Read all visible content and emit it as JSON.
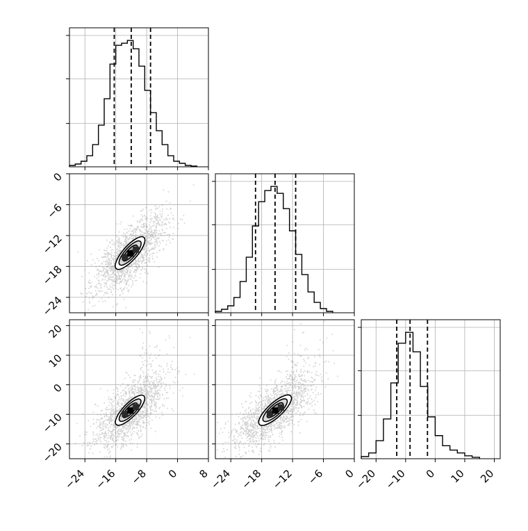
{
  "chart_data": {
    "type": "corner",
    "grid": true,
    "variables": [
      {
        "xlim": [
          -28,
          8
        ],
        "x_ticks": [
          -24,
          -16,
          -8,
          0,
          8
        ],
        "quantiles": [
          -16.4,
          -12.0,
          -7.0
        ],
        "histogram": {
          "bin_edges": [
            -28,
            -26.5,
            -25,
            -23.5,
            -22,
            -20.5,
            -19,
            -17.5,
            -16,
            -14.5,
            -13,
            -11.5,
            -10,
            -8.5,
            -7,
            -5.5,
            -4,
            -2.5,
            -1,
            0.5,
            2,
            3.5,
            5
          ],
          "counts": [
            2,
            4,
            8,
            16,
            32,
            60,
            98,
            148,
            175,
            178,
            182,
            170,
            145,
            110,
            78,
            52,
            32,
            16,
            8,
            5,
            2,
            1
          ]
        }
      },
      {
        "xlim": [
          -27,
          0
        ],
        "x_ticks": [
          -24,
          -18,
          -12,
          -6,
          0
        ],
        "y_ticks": [
          0,
          -6,
          -12,
          -18,
          -24
        ],
        "quantiles": [
          -19.2,
          -15.4,
          -11.4
        ],
        "histogram": {
          "bin_edges": [
            -27,
            -25.8,
            -24.6,
            -23.4,
            -22.2,
            -21,
            -19.8,
            -18.6,
            -17.4,
            -16.2,
            -15,
            -13.8,
            -12.6,
            -11.4,
            -10.2,
            -9,
            -7.8,
            -6.6,
            -5.4,
            -4.2
          ],
          "counts": [
            2,
            5,
            10,
            22,
            45,
            80,
            125,
            160,
            176,
            182,
            172,
            150,
            118,
            84,
            55,
            30,
            15,
            6,
            2
          ]
        }
      },
      {
        "xlim": [
          -25,
          22
        ],
        "x_ticks": [
          -20,
          -10,
          0,
          10,
          20
        ],
        "y_ticks": [
          20,
          10,
          0,
          -10,
          -20
        ],
        "quantiles": [
          -13.0,
          -8.5,
          -2.6
        ],
        "histogram": {
          "bin_edges": [
            -25,
            -22.5,
            -20,
            -17.5,
            -15,
            -12.5,
            -10,
            -7.5,
            -5,
            -2.5,
            0,
            2.5,
            5,
            7.5,
            10,
            12.5,
            15
          ],
          "counts": [
            3,
            8,
            25,
            55,
            105,
            160,
            175,
            148,
            100,
            58,
            32,
            18,
            12,
            8,
            4,
            2
          ]
        }
      }
    ]
  }
}
